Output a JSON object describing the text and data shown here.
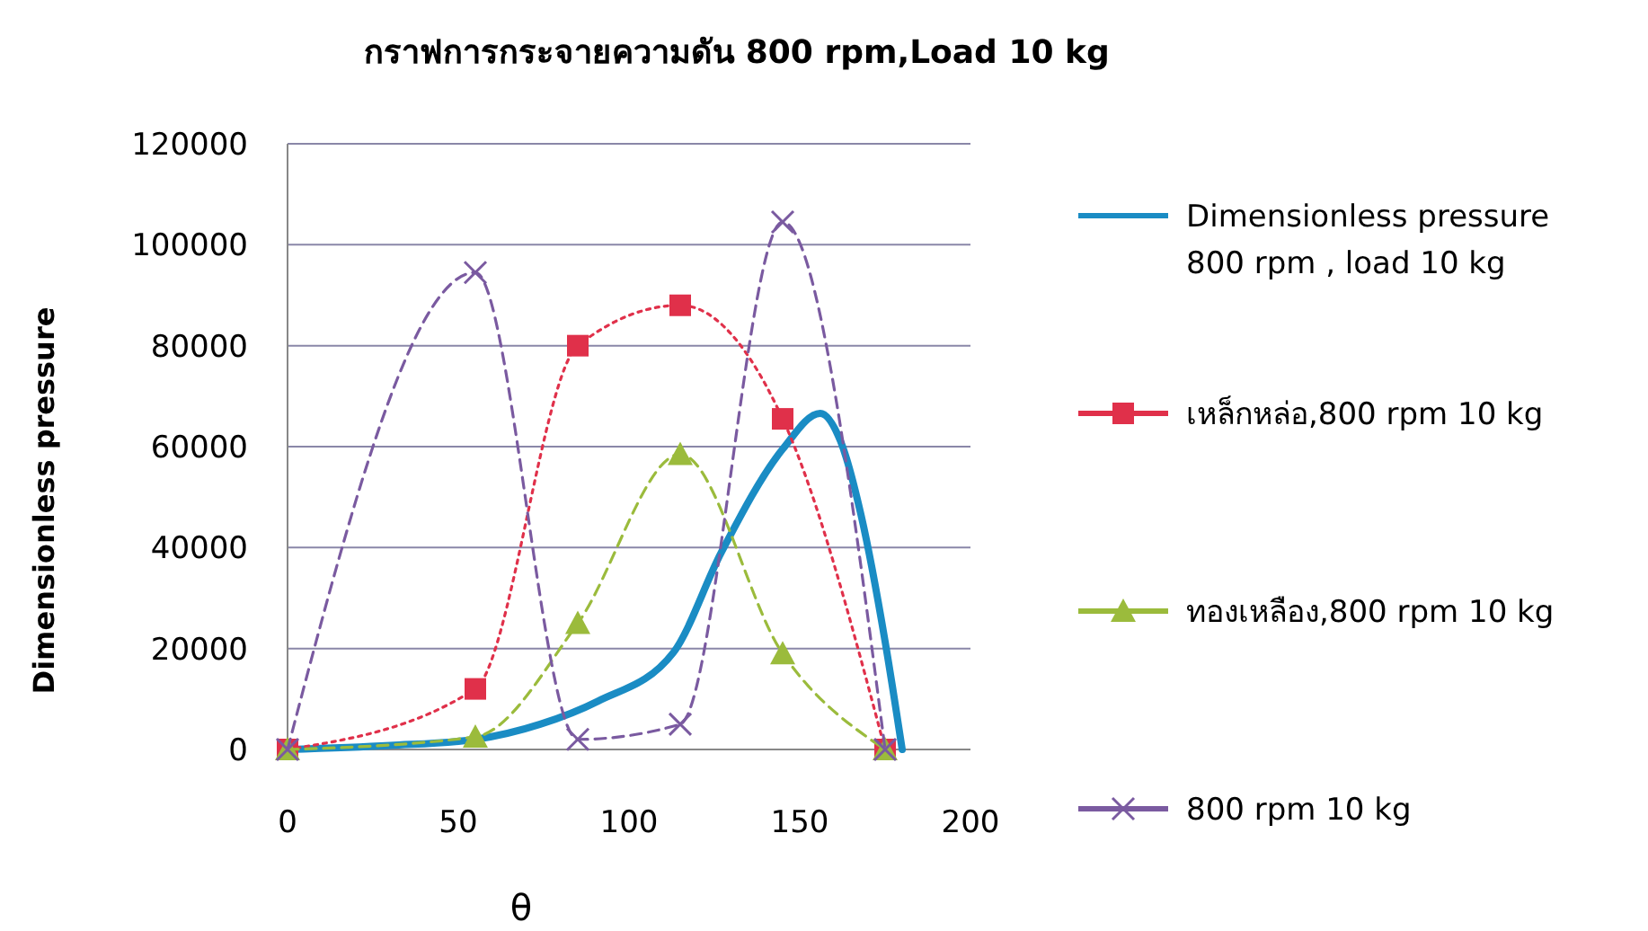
{
  "chart_data": {
    "type": "line",
    "title": "กราฟการกระจายความดัน 800 rpm,Load 10 kg",
    "xlabel": "θ",
    "ylabel": "Dimensionless pressure",
    "xlim": [
      0,
      200
    ],
    "xticks": [
      0,
      50,
      100,
      150,
      200
    ],
    "ylim": [
      0,
      120000
    ],
    "yticks": [
      0,
      20000,
      40000,
      60000,
      80000,
      100000,
      120000
    ],
    "grid": "y",
    "legend": "right",
    "series": [
      {
        "name": "Dimensionless pressure 800 rpm , load 10 kg",
        "color": "#1a8cc4",
        "marker": "none",
        "line_style": "solid",
        "x": [
          0,
          30,
          55,
          74,
          91,
          113,
          127,
          145,
          156,
          162,
          168,
          175,
          180
        ],
        "values": [
          0,
          800,
          2000,
          5000,
          9600,
          19200,
          39000,
          59500,
          66600,
          61000,
          46300,
          21400,
          0
        ]
      },
      {
        "name": "เหล็กหล่อ,800 rpm 10 kg",
        "color": "#e0304a",
        "marker": "square",
        "line_style": "dotted",
        "x": [
          0,
          55,
          85,
          115,
          145,
          175
        ],
        "values": [
          0,
          12000,
          80000,
          88000,
          65500,
          0
        ]
      },
      {
        "name": "ทองเหลือง,800 rpm 10 kg",
        "color": "#9bbb3c",
        "marker": "triangle",
        "line_style": "dashed",
        "x": [
          0,
          55,
          85,
          115,
          145,
          175
        ],
        "values": [
          0,
          2500,
          25000,
          58500,
          19000,
          0
        ]
      },
      {
        "name": "800 rpm 10 kg",
        "color": "#7a5aa0",
        "marker": "cross",
        "line_style": "dashed",
        "x": [
          0,
          55,
          85,
          115,
          145,
          175
        ],
        "values": [
          0,
          94500,
          2000,
          5000,
          104500,
          0
        ]
      }
    ]
  }
}
